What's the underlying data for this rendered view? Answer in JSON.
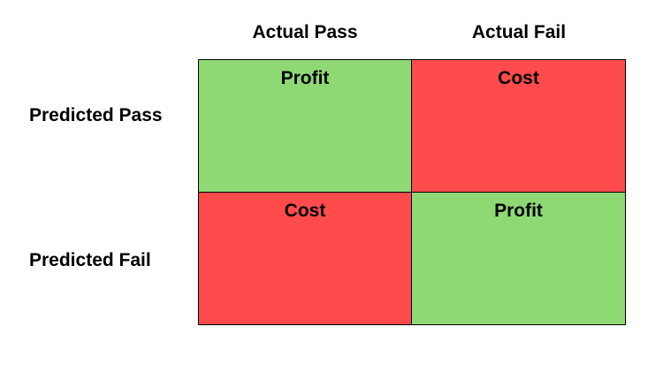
{
  "columns": [
    "Actual Pass",
    "Actual Fail"
  ],
  "rows": [
    "Predicted Pass",
    "Predicted Fail"
  ],
  "cells": [
    [
      {
        "label": "Profit",
        "color": "#8fd975"
      },
      {
        "label": "Cost",
        "color": "#ff4b4b"
      }
    ],
    [
      {
        "label": "Cost",
        "color": "#ff4b4b"
      },
      {
        "label": "Profit",
        "color": "#8fd975"
      }
    ]
  ],
  "colors": {
    "profit": "#8fd975",
    "cost": "#ff4b4b",
    "border": "#000000"
  }
}
